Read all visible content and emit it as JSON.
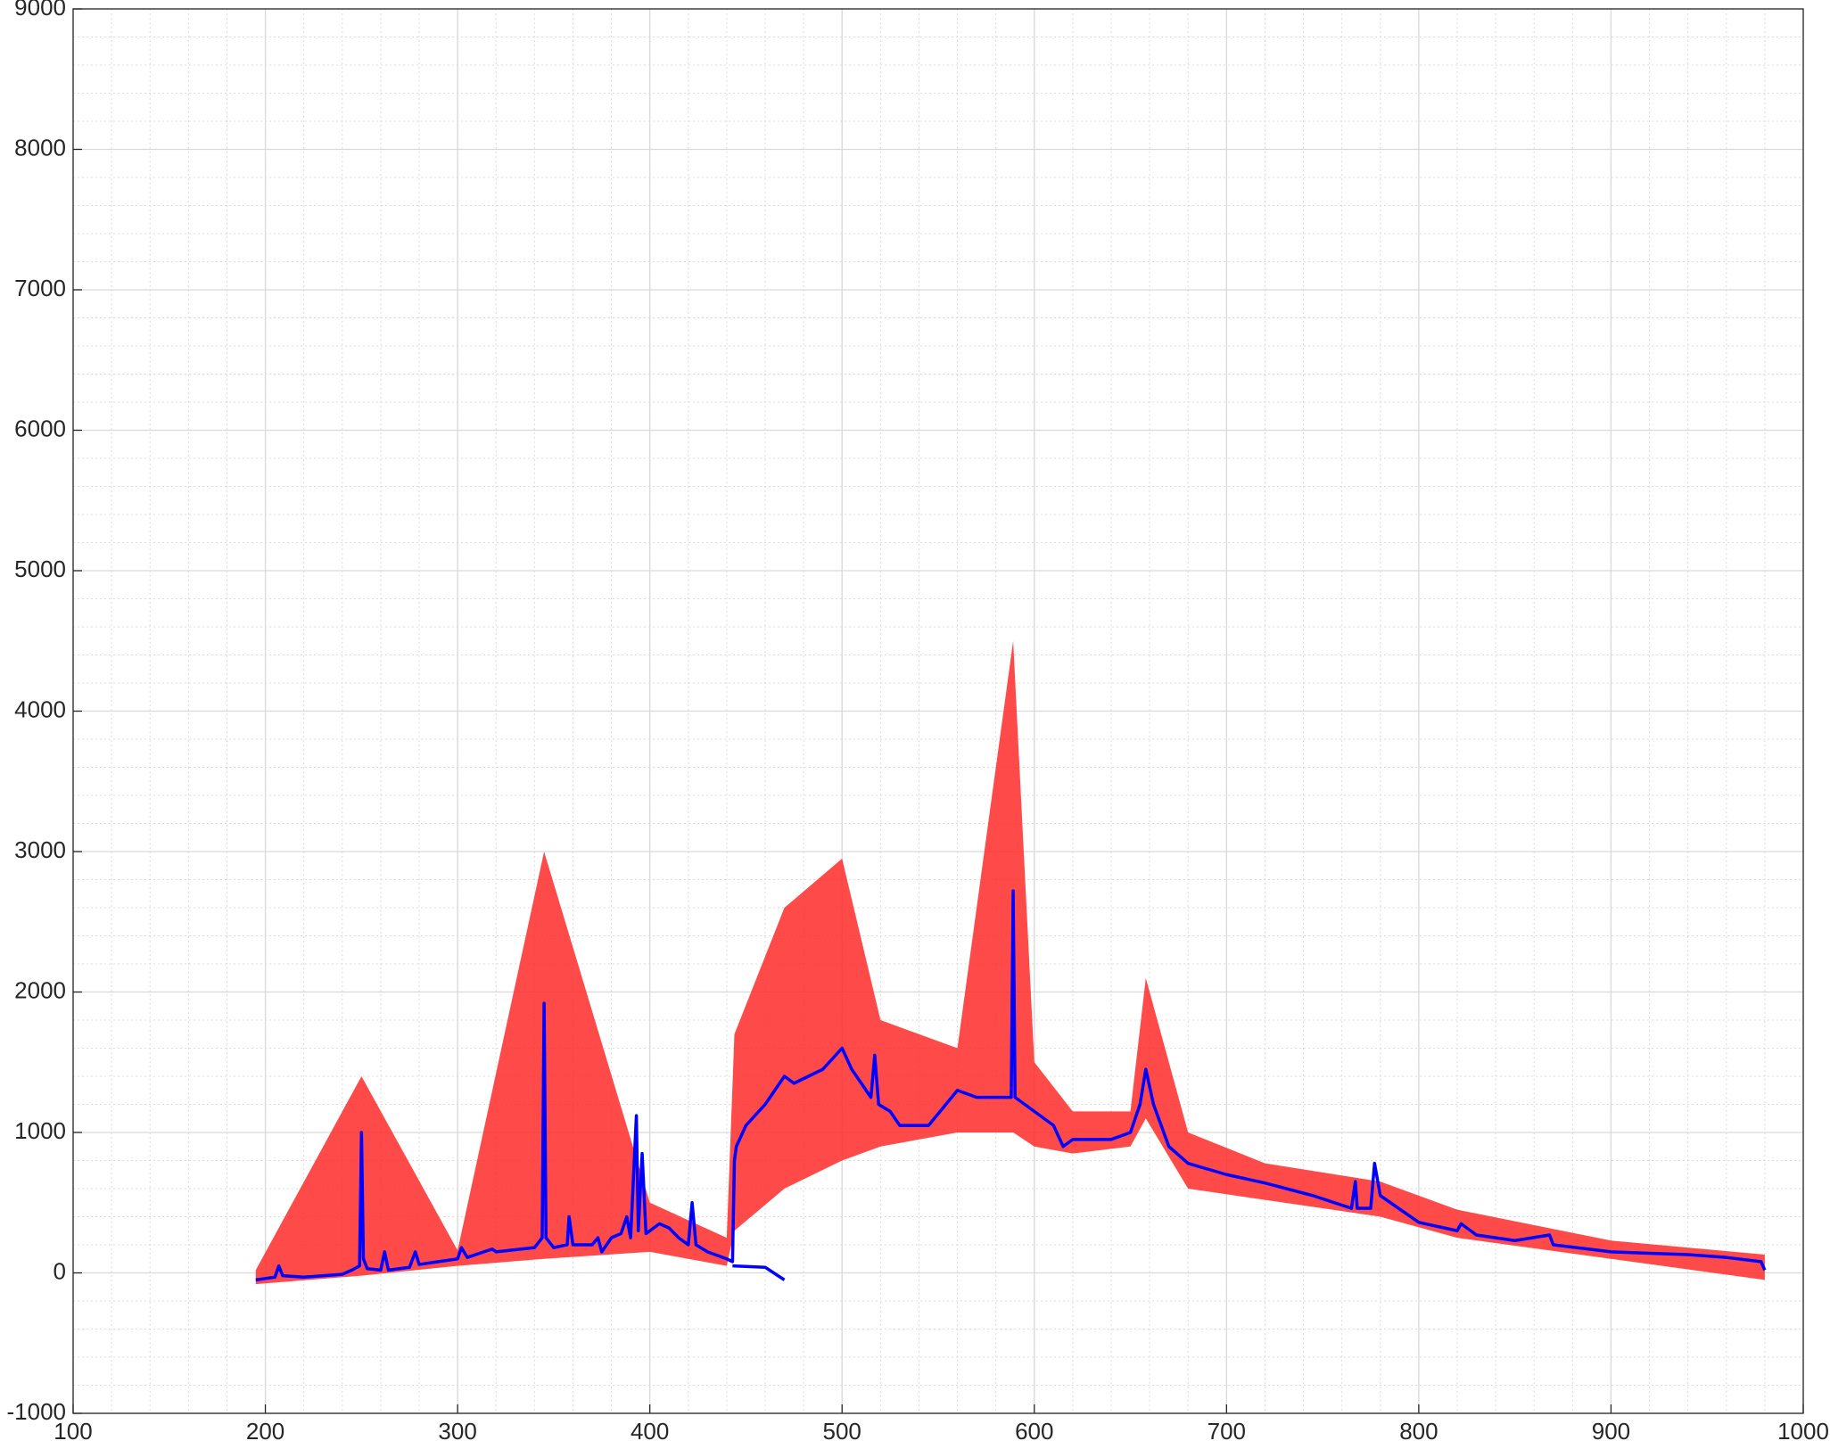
{
  "chart_data": {
    "type": "line",
    "xlim": [
      100,
      1000
    ],
    "xticks": [
      100,
      200,
      300,
      400,
      500,
      600,
      700,
      800,
      900,
      1000
    ],
    "ylim": [
      -1000,
      9000
    ],
    "yticks": [
      -1000,
      0,
      1000,
      2000,
      3000,
      4000,
      5000,
      6000,
      7000,
      8000,
      9000
    ],
    "grid": true,
    "minor_grid": true,
    "xminor_step": 20,
    "yminor_step": 200,
    "band": {
      "color": "#ff2a2a",
      "x": [
        195,
        250,
        300,
        345,
        400,
        440,
        444,
        470,
        500,
        520,
        560,
        589,
        600,
        620,
        650,
        658,
        680,
        720,
        780,
        820,
        900,
        980
      ],
      "lower": [
        -80,
        -20,
        50,
        100,
        150,
        50,
        300,
        600,
        800,
        900,
        1000,
        1000,
        900,
        850,
        900,
        1100,
        600,
        520,
        400,
        250,
        100,
        -50
      ],
      "upper": [
        20,
        1400,
        160,
        3000,
        500,
        250,
        1700,
        2600,
        2950,
        1800,
        1600,
        4500,
        1500,
        1150,
        1150,
        2100,
        1000,
        780,
        650,
        450,
        230,
        130
      ]
    },
    "series": [
      {
        "color": "#0000ff",
        "x": [
          195,
          200,
          205,
          207,
          209,
          220,
          240,
          245,
          249,
          250,
          251,
          253,
          260,
          262,
          264,
          275,
          278,
          280,
          290,
          300,
          302,
          305,
          318,
          320,
          340,
          344,
          345,
          346,
          350,
          357,
          358,
          360,
          370,
          373,
          375,
          380,
          385,
          388,
          390,
          393,
          394,
          396,
          398,
          405,
          410,
          415,
          420,
          422,
          424,
          430,
          440,
          443,
          444,
          445,
          450,
          460,
          470,
          475,
          490,
          500,
          505,
          510,
          515,
          517,
          519,
          525,
          530,
          545,
          560,
          570,
          580,
          588,
          589,
          590,
          600,
          610,
          615,
          620,
          640,
          650,
          655,
          658,
          662,
          670,
          680,
          700,
          720,
          745,
          765,
          767,
          768,
          775,
          777,
          780,
          800,
          820,
          822,
          830,
          850,
          868,
          870,
          900,
          920,
          940,
          960,
          978,
          980
        ],
        "values": [
          -50,
          -40,
          -30,
          50,
          -20,
          -30,
          -10,
          20,
          50,
          1000,
          100,
          30,
          20,
          150,
          20,
          40,
          150,
          60,
          80,
          100,
          180,
          110,
          170,
          150,
          180,
          250,
          1920,
          250,
          180,
          200,
          400,
          200,
          200,
          250,
          150,
          250,
          280,
          400,
          250,
          1120,
          300,
          850,
          280,
          350,
          320,
          250,
          200,
          500,
          200,
          150,
          100,
          80,
          800,
          900,
          1050,
          1200,
          1400,
          1350,
          1450,
          1600,
          1450,
          1350,
          1250,
          1550,
          1200,
          1150,
          1050,
          1050,
          1300,
          1250,
          1250,
          1250,
          2720,
          1250,
          1150,
          1050,
          900,
          950,
          950,
          1000,
          1200,
          1450,
          1200,
          900,
          780,
          700,
          640,
          550,
          460,
          650,
          460,
          460,
          780,
          550,
          360,
          300,
          350,
          270,
          230,
          270,
          200,
          150,
          140,
          130,
          110,
          80,
          20
        ]
      },
      {
        "color": "#0000ff",
        "x": [
          443,
          460,
          470
        ],
        "values": [
          50,
          40,
          -50
        ]
      }
    ]
  }
}
